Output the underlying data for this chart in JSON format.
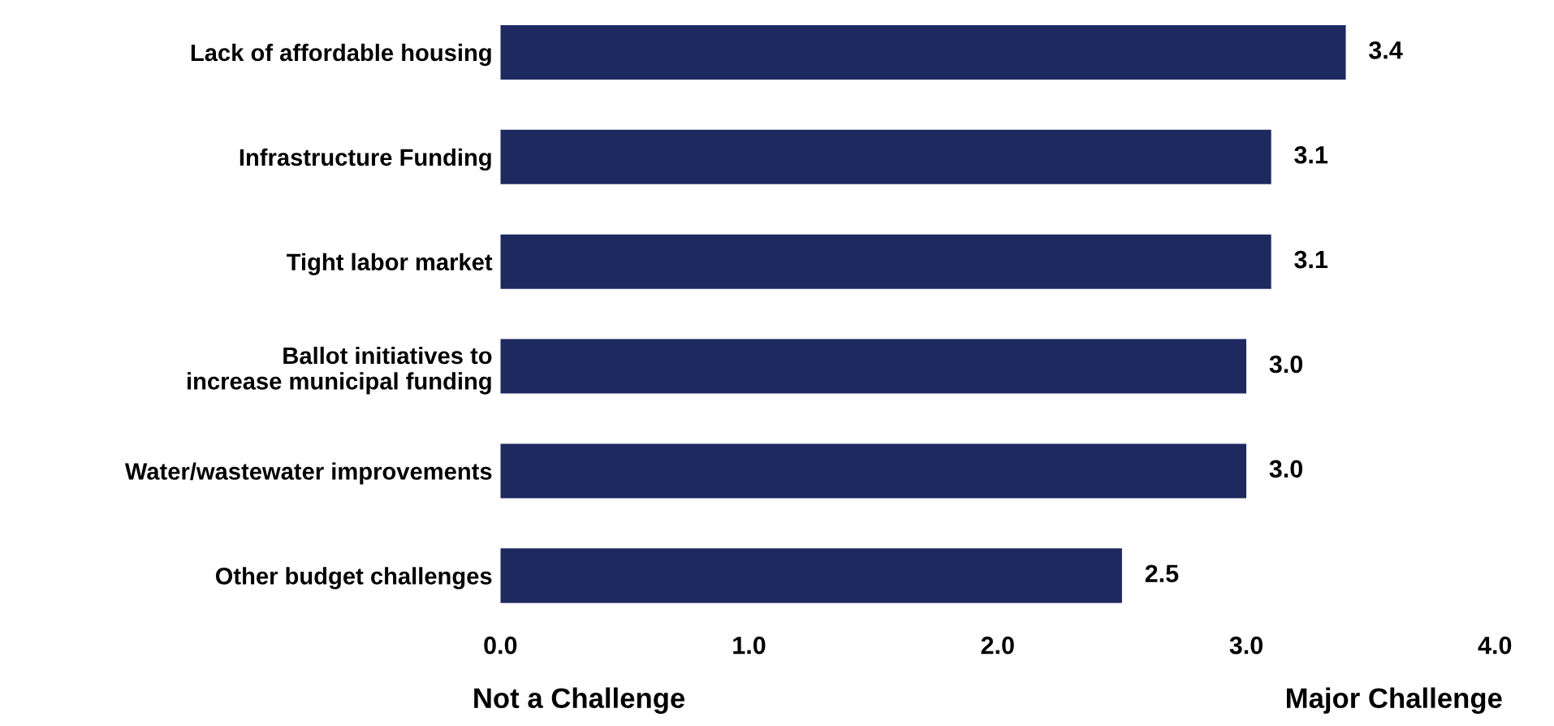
{
  "chart_data": {
    "type": "bar",
    "orientation": "horizontal",
    "categories": [
      "Lack of affordable housing",
      "Infrastructure Funding",
      "Tight labor market",
      "Ballot initiatives to\nincrease municipal funding",
      "Water/wastewater improvements",
      "Other budget challenges"
    ],
    "values": [
      3.4,
      3.1,
      3.1,
      3.0,
      3.0,
      2.5
    ],
    "color": "#1e2960",
    "xlim": [
      0,
      4
    ],
    "xticks": [
      {
        "value": 0,
        "label": "0.0"
      },
      {
        "value": 1,
        "label": "1.0"
      },
      {
        "value": 2,
        "label": "2.0"
      },
      {
        "value": 3,
        "label": "3.0"
      },
      {
        "value": 4,
        "label": "4.0"
      }
    ],
    "value_labels": [
      "3.4",
      "3.1",
      "3.1",
      "3.0",
      "3.0",
      "2.5"
    ],
    "grid": false,
    "annotations": [
      "Not a Challenge",
      "Major Challenge"
    ]
  }
}
